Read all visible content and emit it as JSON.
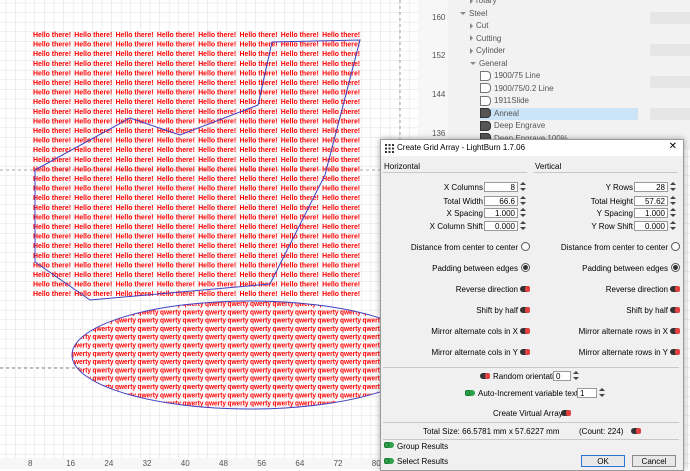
{
  "canvas": {
    "repeated_text_top": "Hello there!",
    "repeated_text_bottom": "qwerty",
    "ruler_left": [
      "160",
      "152",
      "144",
      "136"
    ],
    "ruler_bottom": [
      "8",
      "16",
      "24",
      "32",
      "40",
      "48",
      "56",
      "64",
      "72",
      "80"
    ]
  },
  "library": {
    "items": [
      {
        "label": "rotary",
        "indent": 1,
        "type": "folder"
      },
      {
        "label": "Steel",
        "indent": 0,
        "type": "folder-open"
      },
      {
        "label": "Cut",
        "indent": 1,
        "type": "folder"
      },
      {
        "label": "Cutting",
        "indent": 1,
        "type": "folder"
      },
      {
        "label": "Cylinder",
        "indent": 1,
        "type": "folder"
      },
      {
        "label": "General",
        "indent": 1,
        "type": "folder-open"
      },
      {
        "label": "1900/75 Line",
        "indent": 2,
        "type": "entry"
      },
      {
        "label": "1900/75/0.2 Line",
        "indent": 2,
        "type": "entry"
      },
      {
        "label": "1911Slide",
        "indent": 2,
        "type": "entry"
      },
      {
        "label": "Anneal",
        "indent": 2,
        "type": "entry-dark",
        "selected": true
      },
      {
        "label": "Deep Engrave",
        "indent": 2,
        "type": "entry-dark"
      },
      {
        "label": "Deep Engrave 100%",
        "indent": 2,
        "type": "entry-dark"
      }
    ]
  },
  "dialog": {
    "title": "Create Grid Array - LightBurn 1.7.06",
    "horizontal_header": "Horizontal",
    "vertical_header": "Vertical",
    "x_columns_label": "X Columns",
    "x_columns_value": "8",
    "total_width_label": "Total Width",
    "total_width_value": "66.6",
    "x_spacing_label": "X Spacing",
    "x_spacing_value": "1.000",
    "x_column_shift_label": "X Column Shift",
    "x_column_shift_value": "0.000",
    "y_rows_label": "Y Rows",
    "y_rows_value": "28",
    "total_height_label": "Total Height",
    "total_height_value": "57.62",
    "y_spacing_label": "Y Spacing",
    "y_spacing_value": "1.000",
    "y_row_shift_label": "Y Row Shift",
    "y_row_shift_value": "0.000",
    "distance_center_label": "Distance from center to center",
    "padding_edges_label": "Padding between edges",
    "reverse_direction_label": "Reverse direction",
    "shift_by_half_label": "Shift by half",
    "mirror_cols_x_label": "Mirror alternate cols in X",
    "mirror_cols_y_label": "Mirror alternate cols in Y",
    "mirror_rows_x_label": "Mirror alternate rows in X",
    "mirror_rows_y_label": "Mirror alternate rows in Y",
    "random_orientation_label": "Random orientation",
    "random_orientation_value": "0",
    "auto_increment_label": "Auto-Increment variable text",
    "auto_increment_value": "1",
    "create_virtual_array_label": "Create Virtual Array",
    "total_size_text": "Total Size: 66.5781 mm x 57.6227 mm",
    "count_text": "(Count: 224)",
    "group_results_label": "Group Results",
    "select_results_label": "Select Results",
    "ok_label": "OK",
    "cancel_label": "Cancel"
  },
  "colors": {
    "text_red": "#ff0000",
    "outline_blue": "#4040c0",
    "toggle_on": "#2da24b",
    "toggle_off": "#e04040"
  }
}
